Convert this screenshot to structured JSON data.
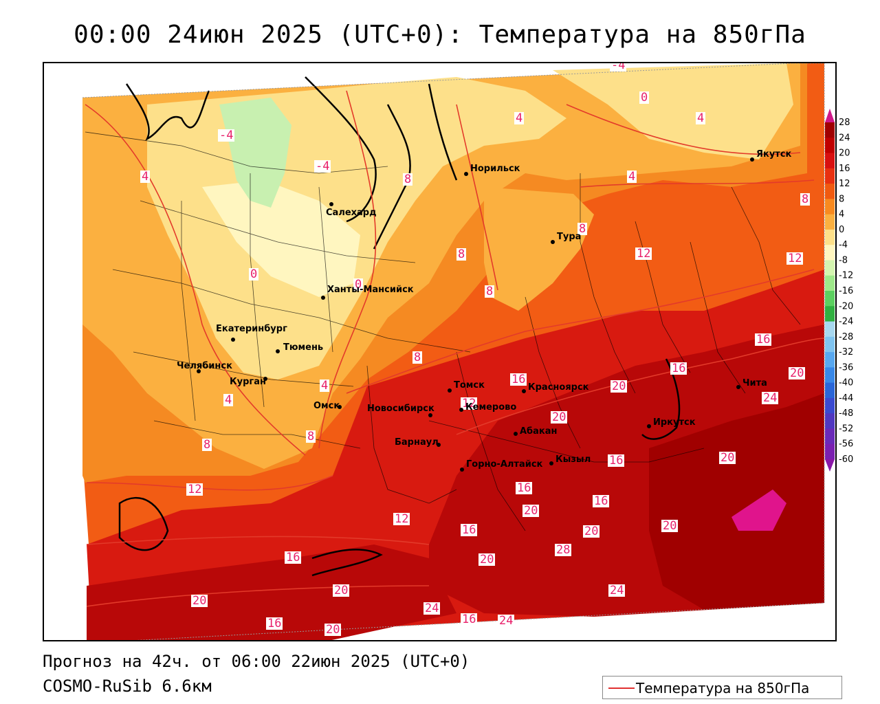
{
  "title": "00:00 24июн 2025 (UTC+0): Температура на 850гПа",
  "footer": {
    "forecast": "Прогноз на 42ч. от 06:00 22июн 2025 (UTC+0)",
    "model": "COSMO-RuSib 6.6км"
  },
  "legend": {
    "label": "Температура на 850гПа",
    "line_color": "#e03030"
  },
  "colorbar": {
    "ticks": [
      "28",
      "24",
      "20",
      "16",
      "12",
      "8",
      "4",
      "0",
      "-4",
      "-8",
      "-12",
      "-16",
      "-20",
      "-24",
      "-28",
      "-32",
      "-36",
      "-40",
      "-44",
      "-48",
      "-52",
      "-56",
      "-60"
    ],
    "colors": [
      "#a00000",
      "#c00000",
      "#d81010",
      "#e83010",
      "#f05a10",
      "#f88a20",
      "#fbb040",
      "#fde08a",
      "#fff6c0",
      "#d4f5b0",
      "#9ee88a",
      "#5cd060",
      "#30b040",
      "#a8d8f0",
      "#80c4f0",
      "#58a8f0",
      "#3888e8",
      "#2a66d8",
      "#3a4ad0",
      "#5038c0",
      "#6a2ab8",
      "#7a20b0",
      "#8a18a8"
    ]
  },
  "cities": [
    {
      "name": "Норильск"
    },
    {
      "name": "Якутск"
    },
    {
      "name": "Салехард"
    },
    {
      "name": "Тура"
    },
    {
      "name": "Ханты-Мансийск"
    },
    {
      "name": "Екатеринбург"
    },
    {
      "name": "Тюмень"
    },
    {
      "name": "Челябинск"
    },
    {
      "name": "Курган"
    },
    {
      "name": "Омск"
    },
    {
      "name": "Новосибирск"
    },
    {
      "name": "Томск"
    },
    {
      "name": "Кемерово"
    },
    {
      "name": "Красноярск"
    },
    {
      "name": "Абакан"
    },
    {
      "name": "Барнаул"
    },
    {
      "name": "Горно-Алтайск"
    },
    {
      "name": "Кызыл"
    },
    {
      "name": "Иркутск"
    },
    {
      "name": "Чита"
    }
  ],
  "isotherm_labels": [
    "-4",
    "-4",
    "-4",
    "0",
    "0",
    "0",
    "4",
    "4",
    "4",
    "4",
    "4",
    "4",
    "8",
    "8",
    "8",
    "8",
    "8",
    "8",
    "8",
    "8",
    "12",
    "12",
    "12",
    "12",
    "12",
    "16",
    "16",
    "16",
    "16",
    "16",
    "16",
    "16",
    "16",
    "16",
    "16",
    "20",
    "20",
    "20",
    "20",
    "20",
    "20",
    "20",
    "20",
    "20",
    "20",
    "20",
    "24",
    "24",
    "24",
    "24",
    "28"
  ]
}
